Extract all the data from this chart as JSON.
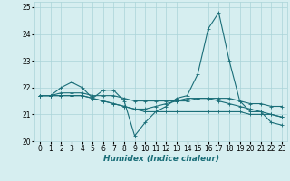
{
  "xlabel": "Humidex (Indice chaleur)",
  "ylabel": "",
  "background_color": "#d6eef0",
  "grid_color": "#aad4d8",
  "line_color": "#1a6e78",
  "x_ticks": [
    0,
    1,
    2,
    3,
    4,
    5,
    6,
    7,
    8,
    9,
    10,
    11,
    12,
    13,
    14,
    15,
    16,
    17,
    18,
    19,
    20,
    21,
    22,
    23
  ],
  "ylim": [
    20,
    25.2
  ],
  "xlim": [
    -0.5,
    23.5
  ],
  "yticks": [
    20,
    21,
    22,
    23,
    24,
    25
  ],
  "series": [
    [
      21.7,
      21.7,
      22.0,
      22.2,
      22.0,
      21.6,
      21.9,
      21.9,
      21.5,
      20.2,
      20.7,
      21.1,
      21.3,
      21.6,
      21.7,
      22.5,
      24.2,
      24.8,
      23.0,
      21.5,
      21.1,
      21.1,
      20.7,
      20.6
    ],
    [
      21.7,
      21.7,
      21.8,
      21.8,
      21.8,
      21.7,
      21.7,
      21.7,
      21.6,
      21.5,
      21.5,
      21.5,
      21.5,
      21.5,
      21.5,
      21.6,
      21.6,
      21.6,
      21.6,
      21.5,
      21.4,
      21.4,
      21.3,
      21.3
    ],
    [
      21.7,
      21.7,
      21.7,
      21.7,
      21.7,
      21.6,
      21.5,
      21.4,
      21.3,
      21.2,
      21.1,
      21.1,
      21.1,
      21.1,
      21.1,
      21.1,
      21.1,
      21.1,
      21.1,
      21.1,
      21.0,
      21.0,
      21.0,
      20.9
    ],
    [
      21.7,
      21.7,
      21.7,
      21.7,
      21.7,
      21.6,
      21.5,
      21.4,
      21.3,
      21.2,
      21.2,
      21.3,
      21.4,
      21.5,
      21.6,
      21.6,
      21.6,
      21.5,
      21.4,
      21.3,
      21.2,
      21.1,
      21.0,
      20.9
    ]
  ],
  "marker": "+",
  "marker_size": 3,
  "linewidth": 0.8,
  "tick_fontsize": 5.5,
  "xlabel_fontsize": 6.5
}
